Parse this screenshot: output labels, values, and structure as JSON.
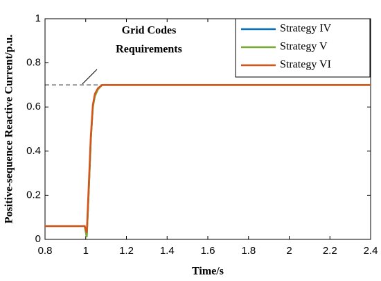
{
  "chart_data": {
    "type": "line",
    "annotation": [
      "Grid Codes",
      "Requirements"
    ],
    "reference_value": 0.7,
    "xlabel": "Time/s",
    "ylabel": "Positive-sequence Reactive Current/p.u.",
    "x": [
      0.8,
      0.995,
      1.005,
      1.015,
      1.025,
      1.035,
      1.045,
      1.06,
      1.08,
      1.1,
      1.3,
      2.4
    ],
    "series": [
      {
        "name": "Strategy IV",
        "color": "#0072bd",
        "values": [
          0.06,
          0.06,
          0.01,
          0.22,
          0.45,
          0.6,
          0.65,
          0.68,
          0.7,
          0.7,
          0.7,
          0.7
        ]
      },
      {
        "name": "Strategy V",
        "color": "#77ac30",
        "values": [
          0.06,
          0.06,
          0.01,
          0.22,
          0.45,
          0.6,
          0.65,
          0.68,
          0.7,
          0.7,
          0.7,
          0.7
        ]
      },
      {
        "name": "Strategy VI",
        "color": "#d95319",
        "values": [
          0.06,
          0.06,
          0.03,
          0.25,
          0.47,
          0.61,
          0.66,
          0.685,
          0.7,
          0.7,
          0.7,
          0.7
        ]
      }
    ],
    "xlim": [
      0.8,
      2.4
    ],
    "xticks": [
      0.8,
      1,
      1.2,
      1.4,
      1.6,
      1.8,
      2,
      2.2,
      2.4
    ],
    "ylim": [
      0,
      1
    ],
    "yticks": [
      0,
      0.2,
      0.4,
      0.6,
      0.8,
      1
    ],
    "legend": "upper right"
  }
}
